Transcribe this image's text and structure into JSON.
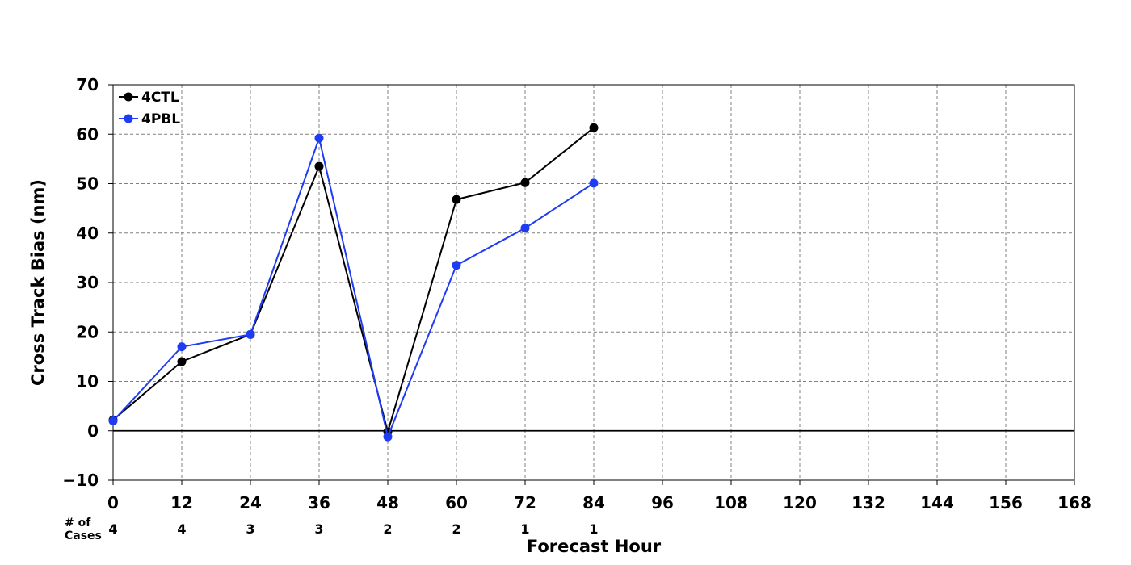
{
  "chart_data": {
    "type": "line",
    "xlabel": "Forecast Hour",
    "ylabel": "Cross Track Bias (nm)",
    "xlim": [
      0,
      168
    ],
    "ylim": [
      -10,
      70
    ],
    "xticks": [
      0,
      12,
      24,
      36,
      48,
      60,
      72,
      84,
      96,
      108,
      120,
      132,
      144,
      156,
      168
    ],
    "xtick_labels": [
      "0",
      "12",
      "24",
      "36",
      "48",
      "60",
      "72",
      "84",
      "96",
      "108",
      "120",
      "132",
      "144",
      "156",
      "168"
    ],
    "yticks": [
      -10,
      0,
      10,
      20,
      30,
      40,
      50,
      60,
      70
    ],
    "ytick_labels": [
      "−10",
      "0",
      "10",
      "20",
      "30",
      "40",
      "50",
      "60",
      "70"
    ],
    "grid": true,
    "legend_position": "top-left",
    "zero_line": true,
    "cases_label": [
      "# of",
      "Cases"
    ],
    "cases_x": [
      0,
      12,
      24,
      36,
      48,
      60,
      72,
      84
    ],
    "cases": [
      "4",
      "4",
      "3",
      "3",
      "2",
      "2",
      "1",
      "1"
    ],
    "series": [
      {
        "name": "4CTL",
        "color": "#000000",
        "x": [
          0,
          12,
          24,
          36,
          48,
          60,
          72,
          84
        ],
        "values": [
          2.2,
          14.0,
          19.5,
          53.5,
          -0.2,
          46.8,
          50.2,
          61.3
        ]
      },
      {
        "name": "4PBL",
        "color": "#1f3cf5",
        "x": [
          0,
          12,
          24,
          36,
          48,
          60,
          72,
          84
        ],
        "values": [
          2.0,
          17.0,
          19.5,
          59.2,
          -1.2,
          33.5,
          41.0,
          50.1
        ]
      }
    ]
  }
}
